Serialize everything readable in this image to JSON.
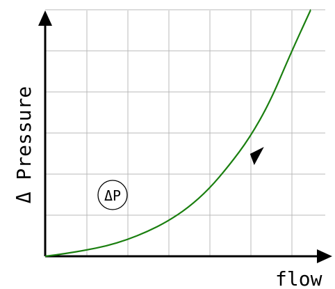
{
  "chart_data": {
    "type": "line",
    "title": "",
    "xlabel": "flow",
    "ylabel": "Δ Pressure",
    "xlim": [
      0,
      6.6
    ],
    "ylim": [
      0,
      6
    ],
    "grid": true,
    "tick_labels_visible": false,
    "series": [
      {
        "name": "",
        "x": [
          0,
          0.5,
          1,
          1.5,
          2,
          2.5,
          3,
          3.5,
          4,
          4.5,
          5,
          5.5,
          6,
          6.5
        ],
        "y": [
          0,
          0.08,
          0.18,
          0.3,
          0.48,
          0.72,
          1.02,
          1.42,
          1.95,
          2.65,
          3.45,
          4.5,
          5.9,
          7.2
        ]
      }
    ],
    "annotation": {
      "text": "ΔP"
    },
    "colors": {
      "curve": "#1a7f0f",
      "axis": "#000000",
      "grid": "#b8b8b8"
    }
  }
}
